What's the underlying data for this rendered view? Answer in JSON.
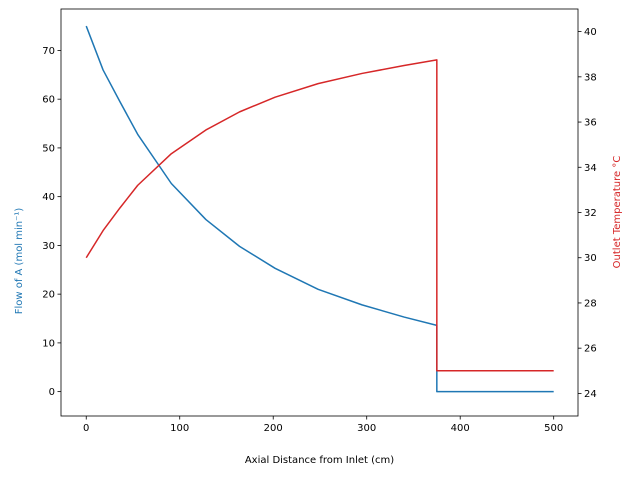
{
  "chart_data": {
    "type": "line",
    "xlabel": "Axial Distance from Inlet (cm)",
    "ylabel_left": "Flow of A (mol min⁻¹)",
    "ylabel_right": "Outlet Temperature °C",
    "xlim": [
      -27,
      526
    ],
    "ylim_left": [
      -5,
      78.5
    ],
    "ylim_right": [
      23,
      41
    ],
    "x_ticks": [
      0,
      100,
      200,
      300,
      400,
      500
    ],
    "y_ticks_left": [
      0,
      10,
      20,
      30,
      40,
      50,
      60,
      70
    ],
    "y_ticks_right": [
      24,
      26,
      28,
      30,
      32,
      34,
      36,
      38,
      40
    ],
    "grid": false,
    "legend": "none",
    "series": [
      {
        "axis": "left",
        "color": "#1f77b4",
        "x": [
          0,
          18,
          36,
          55,
          91,
          128,
          164,
          202,
          248,
          295,
          340,
          375,
          375,
          500
        ],
        "y": [
          75,
          66,
          59.5,
          52.8,
          42.7,
          35.3,
          29.8,
          25.3,
          21.0,
          17.8,
          15.3,
          13.6,
          0,
          0
        ]
      },
      {
        "axis": "right",
        "color": "#d62728",
        "x": [
          0,
          18,
          36,
          55,
          91,
          128,
          164,
          202,
          248,
          295,
          340,
          375,
          375,
          500
        ],
        "y": [
          30.0,
          31.2,
          32.2,
          33.2,
          34.6,
          35.65,
          36.45,
          37.1,
          37.7,
          38.15,
          38.5,
          38.75,
          25.0,
          25.0
        ]
      }
    ]
  }
}
